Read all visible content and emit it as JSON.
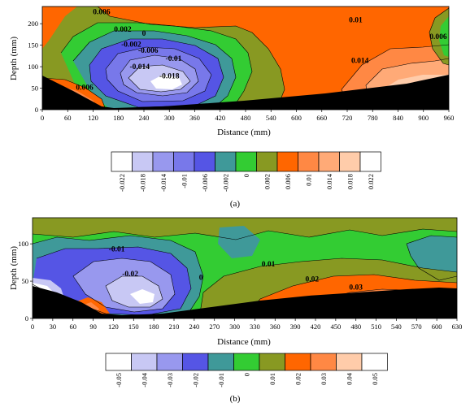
{
  "chart_data": [
    {
      "type": "heatmap",
      "subplot_label": "(a)",
      "xlabel": "Distance (mm)",
      "ylabel": "Depth (mm)",
      "xlim": [
        0,
        960
      ],
      "ylim": [
        0,
        240
      ],
      "x_ticks": [
        "0",
        "60",
        "120",
        "180",
        "240",
        "300",
        "360",
        "420",
        "480",
        "540",
        "600",
        "660",
        "720",
        "780",
        "840",
        "900",
        "960"
      ],
      "y_ticks": [
        "0",
        "50",
        "100",
        "150",
        "200"
      ],
      "colorbar": {
        "levels": [
          "-0.022",
          "-0.018",
          "-0.014",
          "-0.01",
          "-0.006",
          "-0.002",
          "0",
          "0.002",
          "0.006",
          "0.01",
          "0.014",
          "0.018",
          "0.022"
        ],
        "colors": [
          "#ffffff",
          "#c8c8f4",
          "#9898ee",
          "#7878ea",
          "#5555e5",
          "#3f9999",
          "#33cc33",
          "#889922",
          "#ff6600",
          "#ff8844",
          "#ffaa77",
          "#ffccaa",
          "#ffffff"
        ]
      },
      "contour_labels": [
        {
          "text": "0.006",
          "x": 140,
          "y": 228
        },
        {
          "text": "0.002",
          "x": 190,
          "y": 187
        },
        {
          "text": "0",
          "x": 240,
          "y": 178
        },
        {
          "text": "-0.002",
          "x": 210,
          "y": 152
        },
        {
          "text": "-0.006",
          "x": 250,
          "y": 138
        },
        {
          "text": "-0.01",
          "x": 310,
          "y": 119
        },
        {
          "text": "-0.014",
          "x": 230,
          "y": 100
        },
        {
          "text": "-0.018",
          "x": 300,
          "y": 78
        },
        {
          "text": "0.006",
          "x": 100,
          "y": 52
        },
        {
          "text": "0.01",
          "x": 740,
          "y": 209
        },
        {
          "text": "0.014",
          "x": 750,
          "y": 114
        },
        {
          "text": "0.006",
          "x": 935,
          "y": 170
        }
      ]
    },
    {
      "type": "heatmap",
      "subplot_label": "(b)",
      "xlabel": "Distance (mm)",
      "ylabel": "Depth (mm)",
      "xlim": [
        0,
        630
      ],
      "ylim": [
        0,
        135
      ],
      "x_ticks": [
        "0",
        "30",
        "60",
        "90",
        "120",
        "150",
        "180",
        "210",
        "240",
        "270",
        "300",
        "330",
        "360",
        "390",
        "420",
        "450",
        "480",
        "510",
        "540",
        "570",
        "600",
        "630"
      ],
      "y_ticks": [
        "0",
        "50",
        "100"
      ],
      "colorbar": {
        "levels": [
          "-0.05",
          "-0.04",
          "-0.03",
          "-0.02",
          "-0.01",
          "0",
          "0.01",
          "0.02",
          "0.03",
          "0.04",
          "0.05"
        ],
        "colors": [
          "#ffffff",
          "#c8c8f4",
          "#9898ee",
          "#5555e5",
          "#3f9999",
          "#33cc33",
          "#889922",
          "#ff6600",
          "#ff8844",
          "#ffccaa",
          "#ffffff"
        ]
      },
      "contour_labels": [
        {
          "text": "-0.01",
          "x": 125,
          "y": 93
        },
        {
          "text": "-0.02",
          "x": 145,
          "y": 60
        },
        {
          "text": "0",
          "x": 250,
          "y": 55
        },
        {
          "text": "0.01",
          "x": 350,
          "y": 73
        },
        {
          "text": "0.02",
          "x": 415,
          "y": 53
        },
        {
          "text": "0.03",
          "x": 480,
          "y": 42
        }
      ]
    }
  ]
}
